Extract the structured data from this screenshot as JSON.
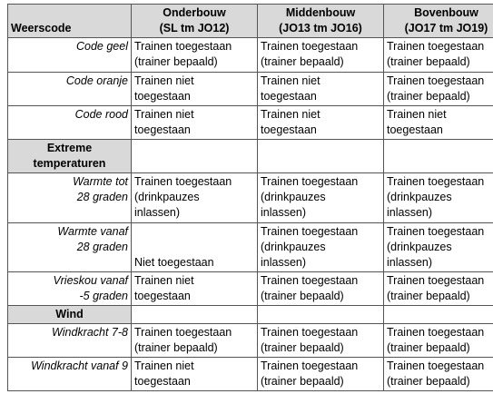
{
  "table": {
    "header": [
      [
        "Weerscode"
      ],
      [
        "Onderbouw",
        "(SL tm JO12)"
      ],
      [
        "Middenbouw",
        "(JO13 tm JO16)"
      ],
      [
        "Bovenbouw",
        "(JO17 tm JO19)"
      ]
    ],
    "rows": [
      {
        "kind": "data",
        "cells": [
          [
            "Code geel"
          ],
          [
            "Trainen toegestaan",
            "(trainer bepaald)"
          ],
          [
            "Trainen toegestaan",
            "(trainer bepaald)"
          ],
          [
            "Trainen toegestaan",
            "(trainer bepaald)"
          ]
        ]
      },
      {
        "kind": "data",
        "cells": [
          [
            "Code oranje"
          ],
          [
            "Trainen niet",
            "toegestaan"
          ],
          [
            "Trainen niet",
            "toegestaan"
          ],
          [
            "Trainen toegestaan",
            "(trainer bepaald)"
          ]
        ]
      },
      {
        "kind": "data",
        "cells": [
          [
            "Code rood"
          ],
          [
            "Trainen niet",
            "toegestaan"
          ],
          [
            "Trainen niet",
            "toegestaan"
          ],
          [
            "Trainen niet",
            "toegestaan"
          ]
        ]
      },
      {
        "kind": "section",
        "cells": [
          [
            "Extreme",
            "temperaturen"
          ],
          [],
          [],
          []
        ]
      },
      {
        "kind": "data",
        "cells": [
          [
            "Warmte tot",
            "28 graden"
          ],
          [
            "Trainen toegestaan",
            "(drinkpauzes",
            "inlassen)"
          ],
          [
            "Trainen toegestaan",
            "(drinkpauzes",
            "inlassen)"
          ],
          [
            "Trainen toegestaan",
            "(drinkpauzes",
            "inlassen)"
          ]
        ]
      },
      {
        "kind": "data",
        "cells": [
          [
            "Warmte vanaf",
            "28 graden"
          ],
          [
            "Niet toegestaan"
          ],
          [
            "Trainen toegestaan",
            "(drinkpauzes",
            "inlassen)"
          ],
          [
            "Trainen toegestaan",
            "(drinkpauzes",
            "inlassen)"
          ]
        ]
      },
      {
        "kind": "data",
        "cells": [
          [
            "Vrieskou vanaf",
            "-5 graden"
          ],
          [
            "Trainen niet",
            "toegestaan"
          ],
          [
            "Trainen toegestaan",
            "(trainer bepaald)"
          ],
          [
            "Trainen toegestaan",
            "(trainer bepaald)"
          ]
        ]
      },
      {
        "kind": "section",
        "cells": [
          [
            "Wind"
          ],
          [],
          [],
          []
        ]
      },
      {
        "kind": "data",
        "cells": [
          [
            "Windkracht 7-8"
          ],
          [
            "Trainen toegestaan",
            "(trainer bepaald)"
          ],
          [
            "Trainen toegestaan",
            "(trainer bepaald)"
          ],
          [
            "Trainen toegestaan",
            "(trainer bepaald)"
          ]
        ]
      },
      {
        "kind": "data",
        "cells": [
          [
            "Windkracht vanaf 9"
          ],
          [
            "Trainen niet",
            "toegestaan"
          ],
          [
            "Trainen toegestaan",
            "(trainer bepaald)"
          ],
          [
            "Trainen toegestaan",
            "(trainer bepaald)"
          ]
        ]
      }
    ]
  }
}
